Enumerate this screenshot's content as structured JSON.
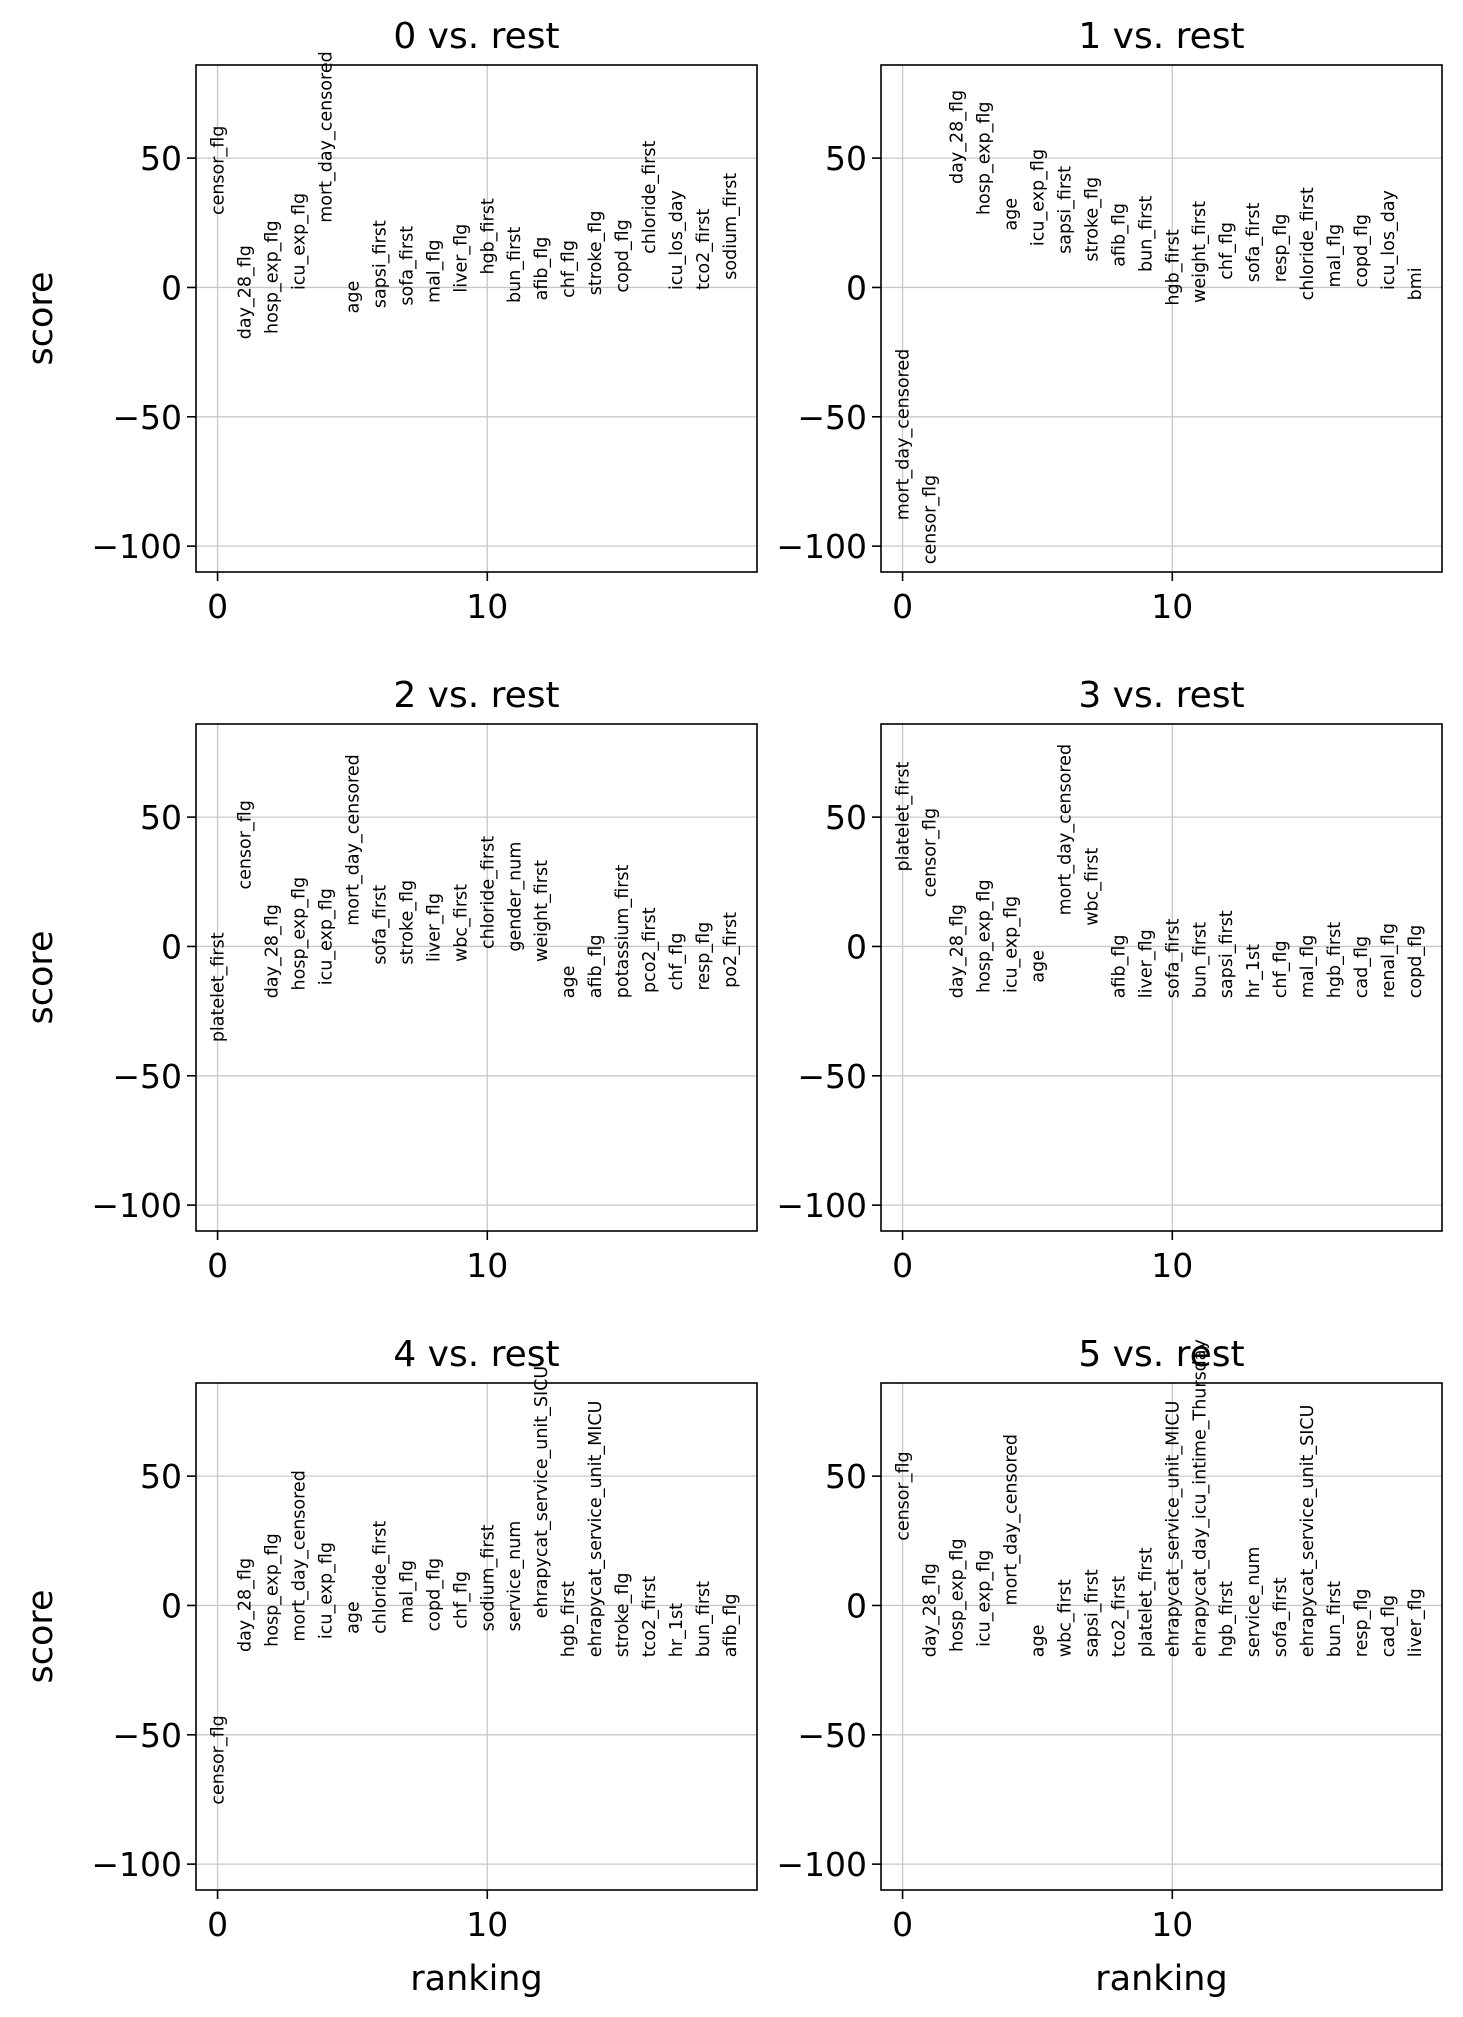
{
  "chart_data": [
    {
      "type": "scatter",
      "title": "0 vs. rest",
      "xlabel": "",
      "ylabel": "score",
      "xlim": [
        -0.8,
        20
      ],
      "ylim": [
        -110,
        86
      ],
      "xticks": [
        0,
        10
      ],
      "yticks": [
        50,
        0,
        -50,
        -100
      ],
      "xtick_labels": [
        "0",
        "10"
      ],
      "ytick_labels": [
        "50",
        "0",
        "−50",
        "−100"
      ],
      "grid": true,
      "points": [
        {
          "rank": 0,
          "label": "censor_flg",
          "score": 28
        },
        {
          "rank": 1,
          "label": "day_28_flg",
          "score": -20
        },
        {
          "rank": 2,
          "label": "hosp_exp_flg",
          "score": -18
        },
        {
          "rank": 3,
          "label": "icu_exp_flg",
          "score": -1
        },
        {
          "rank": 4,
          "label": "mort_day_censored",
          "score": 25
        },
        {
          "rank": 5,
          "label": "age",
          "score": -10
        },
        {
          "rank": 6,
          "label": "sapsi_first",
          "score": -8
        },
        {
          "rank": 7,
          "label": "sofa_first",
          "score": -7
        },
        {
          "rank": 8,
          "label": "mal_flg",
          "score": -6
        },
        {
          "rank": 9,
          "label": "liver_flg",
          "score": -2
        },
        {
          "rank": 10,
          "label": "hgb_first",
          "score": 5
        },
        {
          "rank": 11,
          "label": "bun_first",
          "score": -6
        },
        {
          "rank": 12,
          "label": "afib_flg",
          "score": -5
        },
        {
          "rank": 13,
          "label": "chf_flg",
          "score": -4
        },
        {
          "rank": 14,
          "label": "stroke_flg",
          "score": -3
        },
        {
          "rank": 15,
          "label": "copd_flg",
          "score": -2
        },
        {
          "rank": 16,
          "label": "chloride_first",
          "score": 13
        },
        {
          "rank": 17,
          "label": "icu_los_day",
          "score": -1
        },
        {
          "rank": 18,
          "label": "tco2_first",
          "score": -1
        },
        {
          "rank": 19,
          "label": "sodium_first",
          "score": 3
        }
      ]
    },
    {
      "type": "scatter",
      "title": "1 vs. rest",
      "xlabel": "",
      "ylabel": "",
      "xlim": [
        -0.8,
        20
      ],
      "ylim": [
        -110,
        86
      ],
      "xticks": [
        0,
        10
      ],
      "yticks": [
        50,
        0,
        -50,
        -100
      ],
      "xtick_labels": [
        "0",
        "10"
      ],
      "ytick_labels": [
        "50",
        "0",
        "−50",
        "−100"
      ],
      "grid": true,
      "points": [
        {
          "rank": 0,
          "label": "mort_day_censored",
          "score": -90
        },
        {
          "rank": 1,
          "label": "censor_flg",
          "score": -107
        },
        {
          "rank": 2,
          "label": "day_28_flg",
          "score": 40
        },
        {
          "rank": 3,
          "label": "hosp_exp_flg",
          "score": 28
        },
        {
          "rank": 4,
          "label": "age",
          "score": 22
        },
        {
          "rank": 5,
          "label": "icu_exp_flg",
          "score": 16
        },
        {
          "rank": 6,
          "label": "sapsi_first",
          "score": 13
        },
        {
          "rank": 7,
          "label": "stroke_flg",
          "score": 10
        },
        {
          "rank": 8,
          "label": "afib_flg",
          "score": 8
        },
        {
          "rank": 9,
          "label": "bun_first",
          "score": 6
        },
        {
          "rank": 10,
          "label": "hgb_first",
          "score": -7
        },
        {
          "rank": 11,
          "label": "weight_first",
          "score": -6
        },
        {
          "rank": 12,
          "label": "chf_flg",
          "score": 3
        },
        {
          "rank": 13,
          "label": "sofa_first",
          "score": 2
        },
        {
          "rank": 14,
          "label": "resp_flg",
          "score": 2
        },
        {
          "rank": 15,
          "label": "chloride_first",
          "score": -5
        },
        {
          "rank": 16,
          "label": "mal_flg",
          "score": 0
        },
        {
          "rank": 17,
          "label": "copd_flg",
          "score": 0
        },
        {
          "rank": 18,
          "label": "icu_los_day",
          "score": -1
        },
        {
          "rank": 19,
          "label": "bmi",
          "score": -5
        }
      ]
    },
    {
      "type": "scatter",
      "title": "2 vs. rest",
      "xlabel": "",
      "ylabel": "score",
      "xlim": [
        -0.8,
        20
      ],
      "ylim": [
        -110,
        86
      ],
      "xticks": [
        0,
        10
      ],
      "yticks": [
        50,
        0,
        -50,
        -100
      ],
      "xtick_labels": [
        "0",
        "10"
      ],
      "ytick_labels": [
        "50",
        "0",
        "−50",
        "−100"
      ],
      "grid": true,
      "points": [
        {
          "rank": 0,
          "label": "platelet_first",
          "score": -37
        },
        {
          "rank": 1,
          "label": "censor_flg",
          "score": 22
        },
        {
          "rank": 2,
          "label": "day_28_flg",
          "score": -20
        },
        {
          "rank": 3,
          "label": "hosp_exp_flg",
          "score": -17
        },
        {
          "rank": 4,
          "label": "icu_exp_flg",
          "score": -15
        },
        {
          "rank": 5,
          "label": "mort_day_censored",
          "score": 8
        },
        {
          "rank": 6,
          "label": "sofa_first",
          "score": -7
        },
        {
          "rank": 7,
          "label": "stroke_flg",
          "score": -7
        },
        {
          "rank": 8,
          "label": "liver_flg",
          "score": -6
        },
        {
          "rank": 9,
          "label": "wbc_first",
          "score": -6
        },
        {
          "rank": 10,
          "label": "chloride_first",
          "score": -1
        },
        {
          "rank": 11,
          "label": "gender_num",
          "score": -2
        },
        {
          "rank": 12,
          "label": "weight_first",
          "score": -6
        },
        {
          "rank": 13,
          "label": "age",
          "score": -20
        },
        {
          "rank": 14,
          "label": "afib_flg",
          "score": -20
        },
        {
          "rank": 15,
          "label": "potassium_first",
          "score": -20
        },
        {
          "rank": 16,
          "label": "pco2_first",
          "score": -18
        },
        {
          "rank": 17,
          "label": "chf_flg",
          "score": -17
        },
        {
          "rank": 18,
          "label": "resp_flg",
          "score": -17
        },
        {
          "rank": 19,
          "label": "po2_first",
          "score": -16
        }
      ]
    },
    {
      "type": "scatter",
      "title": "3 vs. rest",
      "xlabel": "",
      "ylabel": "",
      "xlim": [
        -0.8,
        20
      ],
      "ylim": [
        -110,
        86
      ],
      "xticks": [
        0,
        10
      ],
      "yticks": [
        50,
        0,
        -50,
        -100
      ],
      "xtick_labels": [
        "0",
        "10"
      ],
      "ytick_labels": [
        "50",
        "0",
        "−50",
        "−100"
      ],
      "grid": true,
      "points": [
        {
          "rank": 0,
          "label": "platelet_first",
          "score": 29
        },
        {
          "rank": 1,
          "label": "censor_flg",
          "score": 19
        },
        {
          "rank": 2,
          "label": "day_28_flg",
          "score": -20
        },
        {
          "rank": 3,
          "label": "hosp_exp_flg",
          "score": -18
        },
        {
          "rank": 4,
          "label": "icu_exp_flg",
          "score": -18
        },
        {
          "rank": 5,
          "label": "age",
          "score": -14
        },
        {
          "rank": 6,
          "label": "mort_day_censored",
          "score": 12
        },
        {
          "rank": 7,
          "label": "wbc_first",
          "score": 8
        },
        {
          "rank": 8,
          "label": "afib_flg",
          "score": -20
        },
        {
          "rank": 9,
          "label": "liver_flg",
          "score": -20
        },
        {
          "rank": 10,
          "label": "sofa_first",
          "score": -20
        },
        {
          "rank": 11,
          "label": "bun_first",
          "score": -20
        },
        {
          "rank": 12,
          "label": "sapsi_first",
          "score": -20
        },
        {
          "rank": 13,
          "label": "hr_1st",
          "score": -20
        },
        {
          "rank": 14,
          "label": "chf_flg",
          "score": -20
        },
        {
          "rank": 15,
          "label": "mal_flg",
          "score": -20
        },
        {
          "rank": 16,
          "label": "hgb_first",
          "score": -20
        },
        {
          "rank": 17,
          "label": "cad_flg",
          "score": -20
        },
        {
          "rank": 18,
          "label": "renal_flg",
          "score": -20
        },
        {
          "rank": 19,
          "label": "copd_flg",
          "score": -20
        }
      ]
    },
    {
      "type": "scatter",
      "title": "4 vs. rest",
      "xlabel": "ranking",
      "ylabel": "score",
      "xlim": [
        -0.8,
        20
      ],
      "ylim": [
        -110,
        86
      ],
      "xticks": [
        0,
        10
      ],
      "yticks": [
        50,
        0,
        -50,
        -100
      ],
      "xtick_labels": [
        "0",
        "10"
      ],
      "ytick_labels": [
        "50",
        "0",
        "−50",
        "−100"
      ],
      "grid": true,
      "points": [
        {
          "rank": 0,
          "label": "censor_flg",
          "score": -77
        },
        {
          "rank": 1,
          "label": "day_28_flg",
          "score": -18
        },
        {
          "rank": 2,
          "label": "hosp_exp_flg",
          "score": -16
        },
        {
          "rank": 3,
          "label": "mort_day_censored",
          "score": -14
        },
        {
          "rank": 4,
          "label": "icu_exp_flg",
          "score": -13
        },
        {
          "rank": 5,
          "label": "age",
          "score": -11
        },
        {
          "rank": 6,
          "label": "chloride_first",
          "score": -11
        },
        {
          "rank": 7,
          "label": "mal_flg",
          "score": -7
        },
        {
          "rank": 8,
          "label": "copd_flg",
          "score": -10
        },
        {
          "rank": 9,
          "label": "chf_flg",
          "score": -9
        },
        {
          "rank": 10,
          "label": "sodium_first",
          "score": -10
        },
        {
          "rank": 11,
          "label": "service_num",
          "score": -10
        },
        {
          "rank": 12,
          "label": "ehrapycat_service_unit_SICU",
          "score": -5
        },
        {
          "rank": 13,
          "label": "hgb_first",
          "score": -20
        },
        {
          "rank": 14,
          "label": "ehrapycat_service_unit_MICU",
          "score": -20
        },
        {
          "rank": 15,
          "label": "stroke_flg",
          "score": -20
        },
        {
          "rank": 16,
          "label": "tco2_first",
          "score": -20
        },
        {
          "rank": 17,
          "label": "hr_1st",
          "score": -20
        },
        {
          "rank": 18,
          "label": "bun_first",
          "score": -20
        },
        {
          "rank": 19,
          "label": "afib_flg",
          "score": -20
        }
      ]
    },
    {
      "type": "scatter",
      "title": "5 vs. rest",
      "xlabel": "ranking",
      "ylabel": "",
      "xlim": [
        -0.8,
        20
      ],
      "ylim": [
        -110,
        86
      ],
      "xticks": [
        0,
        10
      ],
      "yticks": [
        50,
        0,
        -50,
        -100
      ],
      "xtick_labels": [
        "0",
        "10"
      ],
      "ytick_labels": [
        "50",
        "0",
        "−50",
        "−100"
      ],
      "grid": true,
      "points": [
        {
          "rank": 0,
          "label": "censor_flg",
          "score": 25
        },
        {
          "rank": 1,
          "label": "day_28_flg",
          "score": -20
        },
        {
          "rank": 2,
          "label": "hosp_exp_flg",
          "score": -18
        },
        {
          "rank": 3,
          "label": "icu_exp_flg",
          "score": -16
        },
        {
          "rank": 4,
          "label": "mort_day_censored",
          "score": 0
        },
        {
          "rank": 5,
          "label": "age",
          "score": -20
        },
        {
          "rank": 6,
          "label": "wbc_first",
          "score": -20
        },
        {
          "rank": 7,
          "label": "sapsi_first",
          "score": -20
        },
        {
          "rank": 8,
          "label": "tco2_first",
          "score": -20
        },
        {
          "rank": 9,
          "label": "platelet_first",
          "score": -20
        },
        {
          "rank": 10,
          "label": "ehrapycat_service_unit_MICU",
          "score": -20
        },
        {
          "rank": 11,
          "label": "ehrapycat_day_icu_intime_Thursday",
          "score": -20
        },
        {
          "rank": 12,
          "label": "hgb_first",
          "score": -20
        },
        {
          "rank": 13,
          "label": "service_num",
          "score": -20
        },
        {
          "rank": 14,
          "label": "sofa_first",
          "score": -20
        },
        {
          "rank": 15,
          "label": "ehrapycat_service_unit_SICU",
          "score": -20
        },
        {
          "rank": 16,
          "label": "bun_first",
          "score": -20
        },
        {
          "rank": 17,
          "label": "resp_flg",
          "score": -20
        },
        {
          "rank": 18,
          "label": "cad_flg",
          "score": -20
        },
        {
          "rank": 19,
          "label": "liver_flg",
          "score": -20
        }
      ]
    }
  ]
}
